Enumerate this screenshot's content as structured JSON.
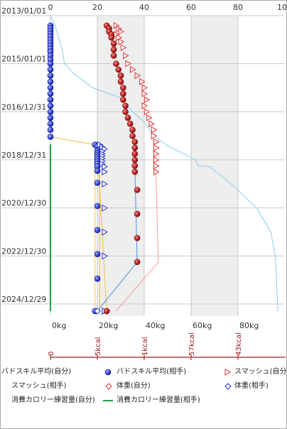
{
  "chart_data": {
    "type": "scatter",
    "orientation": "horizontal-values-vertical-time",
    "y_axis": {
      "type": "date",
      "ticks": [
        "2013/01/01",
        "2015/01/01",
        "2016/12/31",
        "2018/12/31",
        "2020/12/30",
        "2022/12/30",
        "2024/12/29"
      ],
      "range": [
        "2013/01/01",
        "2025/06/30"
      ]
    },
    "top_axis": {
      "ticks": [
        "0",
        "20",
        "40",
        "60",
        "80",
        "10"
      ],
      "range": [
        0,
        100
      ]
    },
    "bottom_axis": {
      "ticks": [
        "0kg",
        "20kg",
        "40kg",
        "60kg",
        "80kg"
      ],
      "range": [
        0,
        100
      ]
    },
    "kcal_axis": {
      "ticks": [
        "0",
        "5kcal",
        "1kcal",
        "57kcal",
        "43kcal"
      ],
      "positions": [
        0,
        20,
        40,
        60,
        80
      ]
    },
    "shaded_bands": [
      [
        20,
        40
      ],
      [
        60,
        80
      ]
    ],
    "grid": true,
    "legend_position": "bottom",
    "series": [
      {
        "name": "バドスキル平均(自分)",
        "kind": "circle",
        "color": "#1f2fd0",
        "points": [
          [
            "2013/06/01",
            0
          ],
          [
            "2013/07/10",
            0
          ],
          [
            "2013/08/20",
            0
          ],
          [
            "2013/10/01",
            0
          ],
          [
            "2013/11/15",
            0
          ],
          [
            "2014/01/01",
            0
          ],
          [
            "2014/02/15",
            0
          ],
          [
            "2014/04/01",
            0
          ],
          [
            "2014/05/15",
            0
          ],
          [
            "2014/07/01",
            0
          ],
          [
            "2014/09/01",
            0
          ],
          [
            "2014/11/01",
            0
          ],
          [
            "2015/01/01",
            0
          ],
          [
            "2015/04/01",
            0
          ],
          [
            "2015/07/01",
            0
          ],
          [
            "2015/10/01",
            0
          ],
          [
            "2016/01/01",
            0
          ],
          [
            "2016/04/01",
            0
          ],
          [
            "2016/07/01",
            0
          ],
          [
            "2016/10/01",
            0
          ],
          [
            "2017/01/01",
            0
          ],
          [
            "2017/04/01",
            0
          ],
          [
            "2017/07/01",
            0
          ],
          [
            "2017/10/01",
            0
          ],
          [
            "2018/01/15",
            0
          ]
        ]
      },
      {
        "name": "バドスキル平均(相手)",
        "kind": "circle",
        "color": "#1f2fd0",
        "points": [
          [
            "2018/05/15",
            19
          ],
          [
            "2018/06/15",
            20
          ],
          [
            "2018/07/15",
            21
          ],
          [
            "2018/08/20",
            20
          ],
          [
            "2018/09/20",
            20
          ],
          [
            "2018/10/20",
            20
          ],
          [
            "2018/11/20",
            20
          ],
          [
            "2018/12/20",
            20
          ],
          [
            "2019/01/25",
            20
          ],
          [
            "2019/03/01",
            20
          ],
          [
            "2019/04/10",
            20
          ],
          [
            "2019/06/15",
            20
          ],
          [
            "2019/12/15",
            20
          ],
          [
            "2020/12/01",
            20
          ],
          [
            "2021/12/01",
            20
          ],
          [
            "2022/12/01",
            20
          ],
          [
            "2023/12/10",
            20
          ],
          [
            "2025/04/15",
            19
          ]
        ]
      },
      {
        "name": "スマッシュ(自分)",
        "kind": "triangle",
        "color": "#e03030",
        "points": [
          [
            "2013/06/01",
            28
          ],
          [
            "2013/07/20",
            29
          ],
          [
            "2013/09/01",
            30
          ],
          [
            "2013/10/15",
            28
          ],
          [
            "2013/12/01",
            29
          ],
          [
            "2014/02/01",
            30
          ],
          [
            "2014/05/01",
            31
          ],
          [
            "2014/09/01",
            32
          ],
          [
            "2015/01/01",
            33
          ],
          [
            "2015/04/01",
            35
          ],
          [
            "2015/07/01",
            37
          ],
          [
            "2015/10/01",
            39
          ],
          [
            "2016/01/01",
            40
          ],
          [
            "2016/04/01",
            40
          ],
          [
            "2016/07/01",
            41
          ],
          [
            "2016/10/01",
            40
          ],
          [
            "2017/01/01",
            41
          ],
          [
            "2017/04/01",
            42
          ],
          [
            "2017/07/01",
            43
          ],
          [
            "2017/10/01",
            44
          ],
          [
            "2018/01/01",
            44
          ],
          [
            "2018/04/01",
            45
          ],
          [
            "2018/07/01",
            45
          ],
          [
            "2018/10/01",
            45
          ],
          [
            "2019/01/01",
            45
          ],
          [
            "2019/04/01",
            45
          ],
          [
            "2019/07/01",
            45
          ]
        ]
      },
      {
        "name": "スマッシュ(相手)",
        "kind": "triangle",
        "color": "#1f2fd0",
        "points": [
          [
            "2018/05/15",
            21
          ],
          [
            "2018/06/20",
            22
          ],
          [
            "2018/07/20",
            23
          ],
          [
            "2018/08/25",
            22
          ],
          [
            "2018/10/01",
            22
          ],
          [
            "2018/11/01",
            22
          ],
          [
            "2018/12/10",
            22
          ],
          [
            "2019/01/20",
            22
          ],
          [
            "2019/03/01",
            22
          ],
          [
            "2019/04/15",
            23
          ],
          [
            "2019/07/01",
            23
          ],
          [
            "2020/01/01",
            23
          ],
          [
            "2021/01/01",
            23
          ],
          [
            "2022/01/01",
            23
          ],
          [
            "2023/01/01",
            23
          ],
          [
            "2025/04/15",
            23
          ]
        ]
      },
      {
        "name": "体重(自分)",
        "kind": "ball",
        "color": "#cc1111",
        "points": [
          [
            "2013/06/01",
            24
          ],
          [
            "2013/07/15",
            25
          ],
          [
            "2013/09/01",
            25
          ],
          [
            "2013/10/15",
            26
          ],
          [
            "2013/12/01",
            26
          ],
          [
            "2014/03/01",
            27
          ],
          [
            "2014/06/01",
            27
          ],
          [
            "2014/09/01",
            27
          ],
          [
            "2015/01/01",
            28
          ],
          [
            "2015/04/01",
            29
          ],
          [
            "2015/07/01",
            30
          ],
          [
            "2015/10/01",
            30
          ],
          [
            "2016/01/01",
            31
          ],
          [
            "2016/04/01",
            31
          ],
          [
            "2016/07/01",
            31
          ],
          [
            "2016/10/01",
            32
          ],
          [
            "2017/01/01",
            32
          ],
          [
            "2017/04/01",
            33
          ],
          [
            "2017/07/01",
            34
          ],
          [
            "2017/10/01",
            35
          ],
          [
            "2018/01/01",
            35
          ],
          [
            "2018/04/01",
            36
          ],
          [
            "2018/07/01",
            36
          ],
          [
            "2018/10/01",
            36
          ],
          [
            "2019/01/01",
            36
          ],
          [
            "2019/04/01",
            36
          ],
          [
            "2019/07/01",
            36
          ],
          [
            "2020/04/01",
            37
          ],
          [
            "2021/04/01",
            37
          ],
          [
            "2022/04/01",
            37
          ],
          [
            "2023/04/01",
            37
          ],
          [
            "2025/04/15",
            24
          ]
        ]
      },
      {
        "name": "体重(相手)",
        "kind": "diamond",
        "color": "#1f2fd0",
        "points": [
          [
            "2025/04/15",
            20
          ]
        ]
      },
      {
        "name": "消費カロリー練習量(自分)",
        "kind": "line",
        "color": "#87ceeb",
        "points": [
          [
            "2013/01/01",
            0
          ],
          [
            "2013/06/01",
            2
          ],
          [
            "2014/06/01",
            5
          ],
          [
            "2015/01/01",
            6
          ],
          [
            "2015/06/01",
            10
          ],
          [
            "2016/01/01",
            18
          ],
          [
            "2016/06/01",
            30
          ],
          [
            "2016/12/31",
            35
          ],
          [
            "2017/06/01",
            40
          ],
          [
            "2018/01/01",
            44
          ],
          [
            "2018/06/01",
            50
          ],
          [
            "2019/01/01",
            62
          ],
          [
            "2019/04/01",
            63
          ],
          [
            "2019/04/15",
            68
          ],
          [
            "2020/01/01",
            77
          ],
          [
            "2021/01/01",
            88
          ],
          [
            "2022/01/01",
            94
          ],
          [
            "2023/01/01",
            96
          ],
          [
            "2025/04/15",
            97
          ]
        ]
      },
      {
        "name": "消費カロリー練習量(相手)",
        "kind": "line",
        "color": "#20a040",
        "points": [
          [
            "2018/05/10",
            0
          ],
          [
            "2025/04/15",
            0
          ]
        ]
      }
    ],
    "connectors": [
      {
        "color": "#f0c040",
        "points": [
          [
            "2018/01/15",
            0
          ],
          [
            "2018/05/15",
            19
          ],
          [
            "2025/04/15",
            19
          ]
        ]
      },
      {
        "color": "#f0c040",
        "points": [
          [
            "2018/06/15",
            20
          ],
          [
            "2025/04/15",
            24
          ]
        ]
      },
      {
        "color": "#f0c040",
        "points": [
          [
            "2018/07/15",
            21
          ],
          [
            "2025/04/15",
            21
          ]
        ]
      },
      {
        "color": "#4a90d9",
        "points": [
          [
            "2019/04/01",
            36
          ],
          [
            "2023/04/01",
            37
          ],
          [
            "2025/04/15",
            20
          ]
        ]
      },
      {
        "color": "#ff9999",
        "points": [
          [
            "2019/07/01",
            45
          ],
          [
            "2023/04/01",
            46
          ],
          [
            "2025/04/15",
            28
          ]
        ]
      }
    ]
  },
  "legend": {
    "items": [
      {
        "label": "バドスキル平均(自分)"
      },
      {
        "label": "バドスキル平均(相手)"
      },
      {
        "label": "スマッシュ(自分)"
      },
      {
        "label": "スマッシュ(相手)"
      },
      {
        "label": "体重(自分)"
      },
      {
        "label": "体重(相手)"
      },
      {
        "label": "消費カロリー練習量(自分)"
      },
      {
        "label": "消費カロリー練習量(相手)"
      }
    ]
  }
}
